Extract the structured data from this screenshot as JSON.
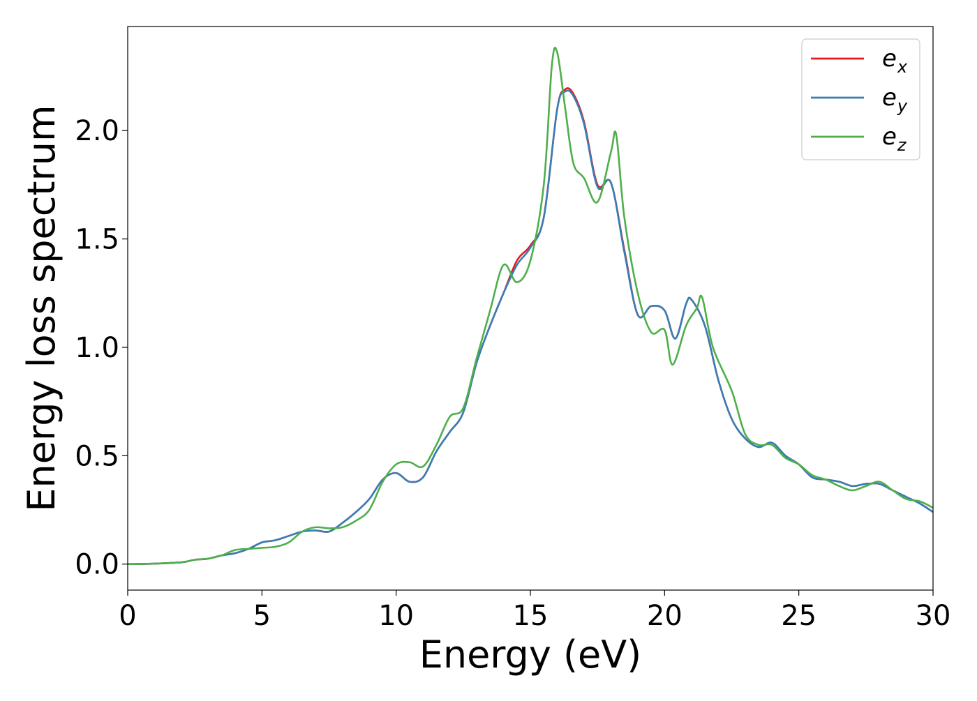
{
  "chart_data": {
    "type": "line",
    "title": "",
    "xlabel": "Energy (eV)",
    "ylabel": "Energy loss spectrum",
    "xlim": [
      0,
      30
    ],
    "ylim": [
      -0.12,
      2.48
    ],
    "xticks": [
      0,
      5,
      10,
      15,
      20,
      25,
      30
    ],
    "xtick_labels": [
      "0",
      "5",
      "10",
      "15",
      "20",
      "25",
      "30"
    ],
    "yticks": [
      0.0,
      0.5,
      1.0,
      1.5,
      2.0
    ],
    "ytick_labels": [
      "0.0",
      "0.5",
      "1.0",
      "1.5",
      "2.0"
    ],
    "grid": false,
    "legend_position": "top-right",
    "colors": {
      "e_x": "#e41a1c",
      "e_y": "#377eb8",
      "e_z": "#4daf4a"
    },
    "series": [
      {
        "name": "e_x",
        "symbol": "e",
        "subscript": "x",
        "color": "#e41a1c",
        "x": [
          0,
          1,
          2,
          2.5,
          3,
          3.5,
          4,
          4.5,
          5,
          5.5,
          6,
          6.5,
          7,
          7.5,
          8,
          8.5,
          9,
          9.5,
          10,
          10.5,
          11,
          11.5,
          12,
          12.5,
          13,
          13.5,
          14,
          14.5,
          15,
          15.5,
          16,
          16.3,
          16.6,
          17,
          17.5,
          18,
          18.5,
          19,
          19.5,
          20,
          20.4,
          20.8,
          21,
          21.5,
          22,
          22.5,
          23,
          23.5,
          24,
          24.5,
          25,
          25.5,
          26,
          26.5,
          27,
          27.5,
          28,
          28.5,
          29,
          29.5,
          30
        ],
        "values": [
          0.0,
          0.002,
          0.008,
          0.02,
          0.025,
          0.04,
          0.05,
          0.07,
          0.1,
          0.11,
          0.13,
          0.15,
          0.155,
          0.15,
          0.19,
          0.24,
          0.3,
          0.39,
          0.42,
          0.38,
          0.4,
          0.52,
          0.61,
          0.7,
          0.93,
          1.1,
          1.25,
          1.4,
          1.47,
          1.6,
          2.1,
          2.19,
          2.17,
          2.04,
          1.75,
          1.76,
          1.45,
          1.15,
          1.19,
          1.17,
          1.04,
          1.2,
          1.22,
          1.1,
          0.85,
          0.67,
          0.58,
          0.54,
          0.56,
          0.5,
          0.46,
          0.4,
          0.39,
          0.38,
          0.36,
          0.37,
          0.37,
          0.34,
          0.31,
          0.28,
          0.24
        ]
      },
      {
        "name": "e_y",
        "symbol": "e",
        "subscript": "y",
        "color": "#377eb8",
        "x": [
          0,
          1,
          2,
          2.5,
          3,
          3.5,
          4,
          4.5,
          5,
          5.5,
          6,
          6.5,
          7,
          7.5,
          8,
          8.5,
          9,
          9.5,
          10,
          10.5,
          11,
          11.5,
          12,
          12.5,
          13,
          13.5,
          14,
          14.5,
          15,
          15.5,
          16,
          16.3,
          16.6,
          17,
          17.5,
          18,
          18.5,
          19,
          19.5,
          20,
          20.4,
          20.8,
          21,
          21.5,
          22,
          22.5,
          23,
          23.5,
          24,
          24.5,
          25,
          25.5,
          26,
          26.5,
          27,
          27.5,
          28,
          28.5,
          29,
          29.5,
          30
        ],
        "values": [
          0.0,
          0.002,
          0.008,
          0.02,
          0.025,
          0.04,
          0.05,
          0.07,
          0.1,
          0.11,
          0.13,
          0.15,
          0.155,
          0.15,
          0.19,
          0.24,
          0.3,
          0.39,
          0.42,
          0.38,
          0.4,
          0.52,
          0.61,
          0.7,
          0.93,
          1.1,
          1.25,
          1.38,
          1.46,
          1.6,
          2.1,
          2.18,
          2.16,
          2.03,
          1.74,
          1.76,
          1.44,
          1.15,
          1.19,
          1.17,
          1.04,
          1.2,
          1.22,
          1.1,
          0.85,
          0.67,
          0.58,
          0.54,
          0.56,
          0.5,
          0.46,
          0.4,
          0.39,
          0.38,
          0.36,
          0.37,
          0.37,
          0.34,
          0.31,
          0.28,
          0.24
        ]
      },
      {
        "name": "e_z",
        "symbol": "e",
        "subscript": "z",
        "color": "#4daf4a",
        "x": [
          0,
          1,
          2,
          2.5,
          3,
          3.5,
          4,
          4.5,
          5,
          5.5,
          6,
          6.5,
          7,
          7.5,
          8,
          8.5,
          9,
          9.5,
          10,
          10.5,
          11,
          11.5,
          12,
          12.5,
          13,
          13.5,
          14,
          14.5,
          15,
          15.5,
          15.8,
          16,
          16.3,
          16.6,
          17,
          17.5,
          18,
          18.2,
          18.5,
          19,
          19.5,
          20,
          20.3,
          20.8,
          21.2,
          21.4,
          21.8,
          22.5,
          23,
          23.5,
          24,
          24.5,
          25,
          25.5,
          26,
          26.5,
          27,
          27.5,
          28,
          28.5,
          29,
          29.5,
          30
        ],
        "values": [
          0.0,
          0.002,
          0.008,
          0.02,
          0.025,
          0.04,
          0.065,
          0.07,
          0.075,
          0.08,
          0.1,
          0.15,
          0.17,
          0.165,
          0.17,
          0.2,
          0.25,
          0.38,
          0.46,
          0.47,
          0.45,
          0.55,
          0.68,
          0.72,
          0.95,
          1.17,
          1.38,
          1.3,
          1.4,
          1.75,
          2.3,
          2.36,
          2.1,
          1.85,
          1.78,
          1.67,
          1.9,
          1.98,
          1.6,
          1.25,
          1.07,
          1.08,
          0.92,
          1.1,
          1.18,
          1.23,
          1.0,
          0.8,
          0.6,
          0.55,
          0.55,
          0.49,
          0.46,
          0.41,
          0.39,
          0.36,
          0.34,
          0.36,
          0.38,
          0.34,
          0.3,
          0.29,
          0.26
        ]
      }
    ]
  }
}
